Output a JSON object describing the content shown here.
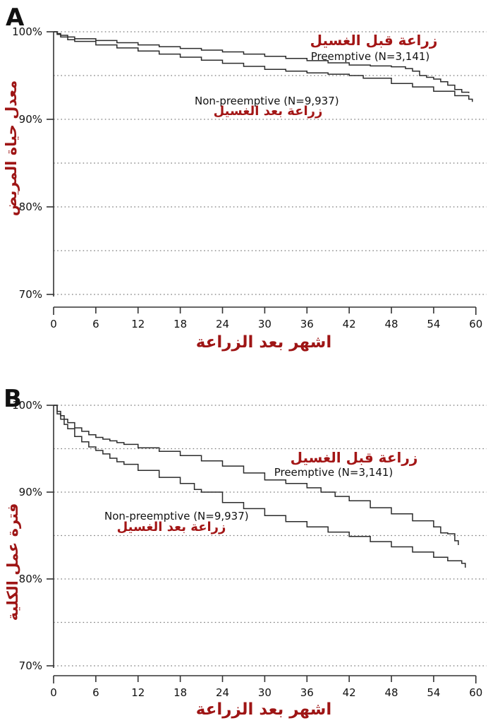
{
  "figure": {
    "panel_a_letter": "A",
    "panel_b_letter": "B"
  },
  "chart_data": [
    {
      "type": "line",
      "panel_label": "A",
      "ylabel_ar": "معدل حياة المريض",
      "xlabel_ar": "اشهر بعد الزراعة",
      "xlim": [
        0,
        60
      ],
      "ylim": [
        70,
        100
      ],
      "x_ticks": [
        0,
        6,
        12,
        18,
        24,
        30,
        36,
        42,
        48,
        54,
        60
      ],
      "y_ticks": [
        100,
        90,
        80,
        70
      ],
      "y_tick_suffix": "%",
      "grid_percent": [
        100,
        95,
        90,
        85,
        80,
        75,
        70
      ],
      "grid_style": "dotted",
      "legend_position": "inline-annotations",
      "series": [
        {
          "name": "Preemptive (N=3,141)",
          "name_ar": "زراعة قبل الغسيل",
          "points": [
            [
              0,
              100
            ],
            [
              0.5,
              99.8
            ],
            [
              1,
              99.6
            ],
            [
              2,
              99.4
            ],
            [
              3,
              99.2
            ],
            [
              6,
              99.0
            ],
            [
              9,
              98.75
            ],
            [
              12,
              98.5
            ],
            [
              15,
              98.3
            ],
            [
              18,
              98.1
            ],
            [
              21,
              97.9
            ],
            [
              24,
              97.7
            ],
            [
              27,
              97.45
            ],
            [
              30,
              97.2
            ],
            [
              33,
              96.95
            ],
            [
              36,
              96.7
            ],
            [
              39,
              96.45
            ],
            [
              42,
              96.2
            ],
            [
              45,
              96.1
            ],
            [
              48,
              96.0
            ],
            [
              50,
              95.8
            ],
            [
              51,
              95.5
            ],
            [
              52,
              95.0
            ],
            [
              53,
              94.8
            ],
            [
              54,
              94.6
            ],
            [
              55,
              94.3
            ],
            [
              56,
              93.9
            ],
            [
              57,
              93.4
            ],
            [
              58,
              93.1
            ],
            [
              59,
              93.0
            ]
          ]
        },
        {
          "name": "Non-preemptive (N=9,937)",
          "name_ar": "زراعة بعد الغسيل",
          "points": [
            [
              0,
              100
            ],
            [
              0.5,
              99.7
            ],
            [
              1,
              99.4
            ],
            [
              2,
              99.1
            ],
            [
              3,
              98.9
            ],
            [
              6,
              98.5
            ],
            [
              9,
              98.15
            ],
            [
              12,
              97.8
            ],
            [
              15,
              97.45
            ],
            [
              18,
              97.1
            ],
            [
              21,
              96.75
            ],
            [
              24,
              96.4
            ],
            [
              27,
              96.05
            ],
            [
              30,
              95.7
            ],
            [
              33,
              95.5
            ],
            [
              36,
              95.3
            ],
            [
              39,
              95.15
            ],
            [
              42,
              95.0
            ],
            [
              44,
              94.7
            ],
            [
              48,
              94.1
            ],
            [
              51,
              93.7
            ],
            [
              54,
              93.2
            ],
            [
              57,
              92.7
            ],
            [
              59,
              92.3
            ],
            [
              59.5,
              92.0
            ]
          ]
        }
      ]
    },
    {
      "type": "line",
      "panel_label": "B",
      "ylabel_ar": "فترة عمل الكلية",
      "xlabel_ar": "اشهر بعد الزراعة",
      "xlim": [
        0,
        60
      ],
      "ylim": [
        70,
        100
      ],
      "x_ticks": [
        0,
        6,
        12,
        18,
        24,
        30,
        36,
        42,
        48,
        54,
        60
      ],
      "y_ticks": [
        100,
        90,
        80,
        70
      ],
      "y_tick_suffix": "%",
      "grid_percent": [
        100,
        95,
        90,
        85,
        80,
        75,
        70
      ],
      "grid_style": "dotted",
      "legend_position": "inline-annotations",
      "series": [
        {
          "name": "Preemptive (N=3,141)",
          "name_ar": "زراعة قبل الغسيل",
          "points": [
            [
              0,
              100
            ],
            [
              0.5,
              99.3
            ],
            [
              1,
              98.8
            ],
            [
              1.5,
              98.4
            ],
            [
              2,
              98.0
            ],
            [
              3,
              97.4
            ],
            [
              4,
              97.0
            ],
            [
              5,
              96.6
            ],
            [
              6,
              96.3
            ],
            [
              7,
              96.1
            ],
            [
              8,
              95.9
            ],
            [
              9,
              95.7
            ],
            [
              10,
              95.5
            ],
            [
              12,
              95.1
            ],
            [
              15,
              94.7
            ],
            [
              18,
              94.2
            ],
            [
              21,
              93.6
            ],
            [
              24,
              93.0
            ],
            [
              27,
              92.2
            ],
            [
              30,
              91.4
            ],
            [
              33,
              91.0
            ],
            [
              36,
              90.5
            ],
            [
              38,
              90.0
            ],
            [
              40,
              89.5
            ],
            [
              42,
              89.0
            ],
            [
              45,
              88.2
            ],
            [
              48,
              87.5
            ],
            [
              51,
              86.7
            ],
            [
              54,
              86.0
            ],
            [
              55,
              85.3
            ],
            [
              56,
              85.2
            ],
            [
              57,
              84.4
            ],
            [
              57.5,
              83.9
            ]
          ]
        },
        {
          "name": "Non-preemptive (N=9,937)",
          "name_ar": "زراعة بعد الغسيل",
          "points": [
            [
              0,
              100
            ],
            [
              0.5,
              99.0
            ],
            [
              1,
              98.4
            ],
            [
              1.5,
              97.8
            ],
            [
              2,
              97.3
            ],
            [
              3,
              96.4
            ],
            [
              4,
              95.8
            ],
            [
              5,
              95.2
            ],
            [
              6,
              94.8
            ],
            [
              7,
              94.4
            ],
            [
              8,
              93.9
            ],
            [
              9,
              93.5
            ],
            [
              10,
              93.2
            ],
            [
              12,
              92.5
            ],
            [
              15,
              91.7
            ],
            [
              18,
              91.0
            ],
            [
              20,
              90.3
            ],
            [
              21,
              90.0
            ],
            [
              24,
              88.8
            ],
            [
              27,
              88.1
            ],
            [
              30,
              87.3
            ],
            [
              33,
              86.6
            ],
            [
              36,
              86.0
            ],
            [
              39,
              85.4
            ],
            [
              42,
              84.9
            ],
            [
              45,
              84.3
            ],
            [
              48,
              83.7
            ],
            [
              51,
              83.1
            ],
            [
              54,
              82.5
            ],
            [
              56,
              82.1
            ],
            [
              58,
              81.8
            ],
            [
              58.5,
              81.3
            ]
          ]
        }
      ]
    }
  ]
}
